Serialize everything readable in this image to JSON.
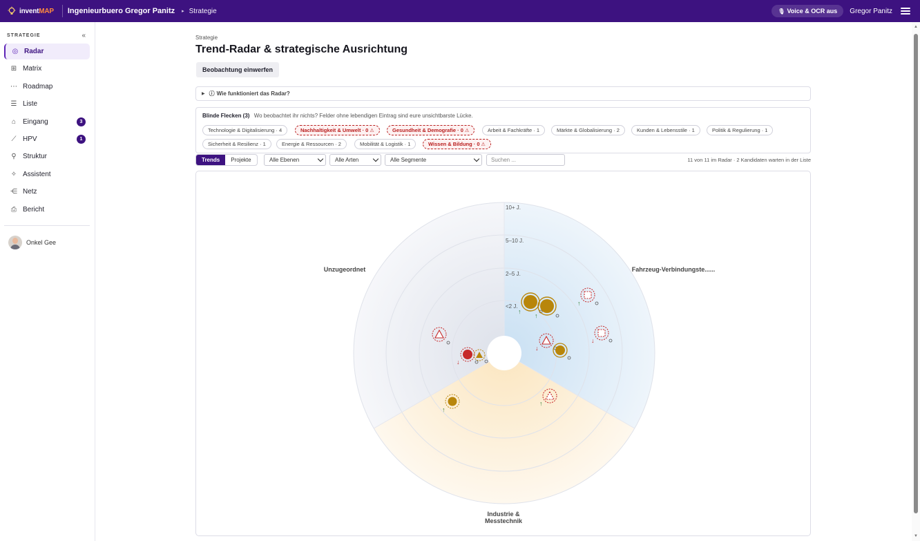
{
  "topbar": {
    "logo_prefix": "invent",
    "logo_suffix": "MAP",
    "org": "Ingenieurbuero Gregor Panitz",
    "crumb": "Strategie",
    "voice_label": "Voice & OCR aus",
    "user": "Gregor Panitz",
    "icons": [
      "bulb-icon",
      "chevron-right-icon",
      "mic-icon",
      "hamburger-icon"
    ]
  },
  "sidebar": {
    "title": "STRATEGIE",
    "collapse": "«",
    "items": [
      {
        "label": "Radar",
        "icon": "◎",
        "active": true,
        "badge": ""
      },
      {
        "label": "Matrix",
        "icon": "⊞",
        "active": false,
        "badge": ""
      },
      {
        "label": "Roadmap",
        "icon": "⋯",
        "active": false,
        "badge": ""
      },
      {
        "label": "Liste",
        "icon": "☰",
        "active": false,
        "badge": ""
      },
      {
        "label": "Eingang",
        "icon": "⌂",
        "active": false,
        "badge": "3"
      },
      {
        "label": "HPV",
        "icon": "⟋",
        "active": false,
        "badge": "1"
      },
      {
        "label": "Struktur",
        "icon": "⚲",
        "active": false,
        "badge": ""
      },
      {
        "label": "Assistent",
        "icon": "✧",
        "active": false,
        "badge": ""
      },
      {
        "label": "Netz",
        "icon": "⋲",
        "active": false,
        "badge": ""
      },
      {
        "label": "Bericht",
        "icon": "⎙",
        "active": false,
        "badge": ""
      }
    ],
    "user": "Onkel Gee"
  },
  "page": {
    "breadcrumb": "Strategie",
    "title": "Trend-Radar & strategische Ausrichtung",
    "observe_button": "Beobachtung einwerfen",
    "howto": "Wie funktioniert das Radar?"
  },
  "blind_spots": {
    "title": "Blinde Flecken (3)",
    "subtitle": "Wo beobachtet ihr nichts? Felder ohne lebendigen Eintrag sind eure unsichtbarste Lücke.",
    "chips": [
      {
        "label": "Technologie & Digitalisierung · 4",
        "warn": false
      },
      {
        "label": "Nachhaltigkeit & Umwelt · 0",
        "warn": true
      },
      {
        "label": "Gesundheit & Demografie · 0",
        "warn": true
      },
      {
        "label": "Arbeit & Fachkräfte · 1",
        "warn": false
      },
      {
        "label": "Märkte & Globalisierung · 2",
        "warn": false
      },
      {
        "label": "Kunden & Lebensstile · 1",
        "warn": false
      },
      {
        "label": "Politik & Regulierung · 1",
        "warn": false
      },
      {
        "label": "Sicherheit & Resilienz · 1",
        "warn": false
      },
      {
        "label": "Energie & Ressourcen · 2",
        "warn": false
      },
      {
        "label": "Mobilität & Logistik · 1",
        "warn": false
      },
      {
        "label": "Wissen & Bildung · 0",
        "warn": true
      }
    ]
  },
  "filters": {
    "tabs": [
      "Trends",
      "Projekte"
    ],
    "active_tab": "Trends",
    "levels": "Alle Ebenen",
    "kinds": "Alle Arten",
    "segments": "Alle Segmente",
    "search_placeholder": "Suchen ...",
    "counts": "11 von 11 im Radar · 2 Kandidaten warten in der Liste"
  },
  "radar": {
    "ring_labels": [
      "10+ J.",
      "5–10 J.",
      "2–5 J.",
      "<2 J."
    ],
    "sectors": [
      {
        "name": "Unzugeordnet",
        "color": "#eceef4"
      },
      {
        "name": "Fahrzeug-Verbindungste......",
        "color": "#dbeaf7"
      },
      {
        "name": "Industrie & Messtechnik",
        "color": "#fdf0d8"
      }
    ],
    "colors": {
      "gold": "#b8860b",
      "red": "#c62828",
      "green": "#2e7d32"
    }
  }
}
